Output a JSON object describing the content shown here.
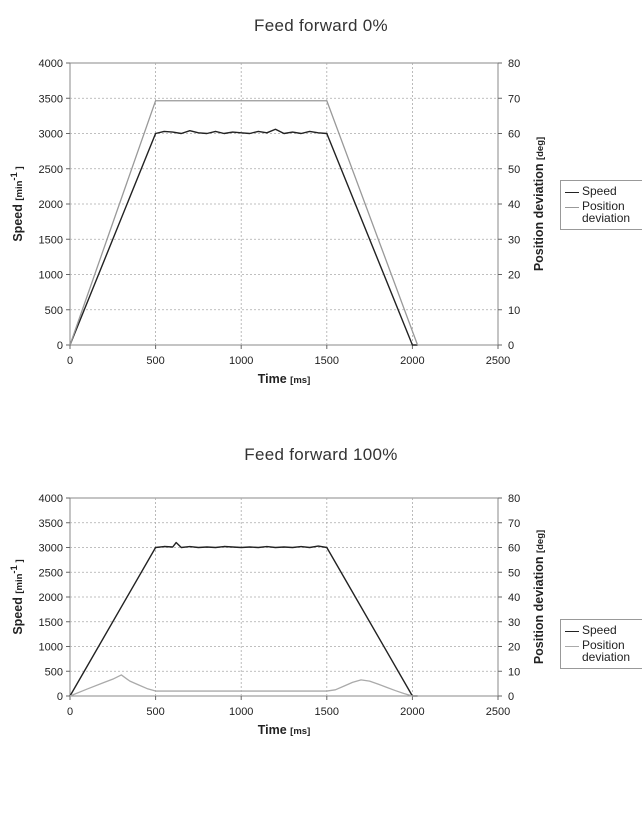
{
  "chart_data": [
    {
      "type": "line",
      "title": "Feed forward 0%",
      "xlabel": "Time",
      "xlabel_unit": "[ms]",
      "ylabel": "Speed",
      "ylabel_unit_prefix": "[min",
      "ylabel_unit_sup": "-1",
      "ylabel_unit_suffix": " ]",
      "y2label": "Position deviation",
      "y2label_unit": "[deg]",
      "xlim": [
        0,
        2500
      ],
      "ylim": [
        0,
        4000
      ],
      "y2lim": [
        0,
        80
      ],
      "xticks": [
        "0",
        "500",
        "1000",
        "1500",
        "2000",
        "2500"
      ],
      "yticks": [
        "0",
        "500",
        "1000",
        "1500",
        "2000",
        "2500",
        "3000",
        "3500",
        "4000"
      ],
      "y2ticks": [
        "0",
        "10",
        "20",
        "30",
        "40",
        "50",
        "60",
        "70",
        "80"
      ],
      "grid": true,
      "legend_position": "right",
      "series": [
        {
          "name": "Speed",
          "axis": "left",
          "color": "#222222",
          "x": [
            0,
            500,
            550,
            600,
            650,
            700,
            750,
            800,
            850,
            900,
            950,
            1000,
            1050,
            1100,
            1150,
            1200,
            1250,
            1300,
            1350,
            1400,
            1450,
            1500,
            2000,
            2030
          ],
          "y": [
            0,
            3000,
            3030,
            3020,
            3000,
            3040,
            3010,
            3000,
            3030,
            3000,
            3020,
            3010,
            3000,
            3030,
            3010,
            3060,
            3000,
            3020,
            3000,
            3030,
            3010,
            3000,
            0,
            0
          ]
        },
        {
          "name": "Position\ndeviation",
          "axis": "right",
          "color": "#999999",
          "x": [
            0,
            500,
            1500,
            2030
          ],
          "y": [
            0,
            69.3,
            69.3,
            0
          ]
        }
      ]
    },
    {
      "type": "line",
      "title": "Feed forward 100%",
      "xlabel": "Time",
      "xlabel_unit": "[ms]",
      "ylabel": "Speed",
      "ylabel_unit_prefix": "[min",
      "ylabel_unit_sup": "-1",
      "ylabel_unit_suffix": " ]",
      "y2label": "Position deviation",
      "y2label_unit": "[deg]",
      "xlim": [
        0,
        2500
      ],
      "ylim": [
        0,
        4000
      ],
      "y2lim": [
        0,
        80
      ],
      "xticks": [
        "0",
        "500",
        "1000",
        "1500",
        "2000",
        "2500"
      ],
      "yticks": [
        "0",
        "500",
        "1000",
        "1500",
        "2000",
        "2500",
        "3000",
        "3500",
        "4000"
      ],
      "y2ticks": [
        "0",
        "10",
        "20",
        "30",
        "40",
        "50",
        "60",
        "70",
        "80"
      ],
      "grid": true,
      "legend_position": "right",
      "series": [
        {
          "name": "Speed",
          "axis": "left",
          "color": "#222222",
          "x": [
            0,
            500,
            550,
            600,
            620,
            650,
            700,
            750,
            800,
            850,
            900,
            950,
            1000,
            1050,
            1100,
            1150,
            1200,
            1250,
            1300,
            1350,
            1400,
            1450,
            1500,
            2000,
            2030
          ],
          "y": [
            0,
            3000,
            3020,
            3010,
            3100,
            3000,
            3020,
            3000,
            3010,
            3000,
            3020,
            3010,
            3000,
            3010,
            3000,
            3020,
            3000,
            3010,
            3000,
            3020,
            3000,
            3030,
            3000,
            0,
            0
          ]
        },
        {
          "name": "Position\ndeviation",
          "axis": "right",
          "color": "#aaaaaa",
          "x": [
            0,
            100,
            200,
            250,
            300,
            350,
            400,
            450,
            500,
            1000,
            1500,
            1550,
            1600,
            1650,
            1700,
            1750,
            1800,
            1850,
            1900,
            1950,
            2000,
            2030
          ],
          "y": [
            0,
            2.8,
            5.5,
            6.8,
            8.5,
            6.0,
            4.5,
            3.0,
            2.0,
            2.0,
            2.0,
            2.5,
            4.0,
            5.5,
            6.5,
            6.0,
            4.8,
            3.5,
            2.2,
            1.0,
            0,
            0
          ]
        }
      ]
    }
  ]
}
